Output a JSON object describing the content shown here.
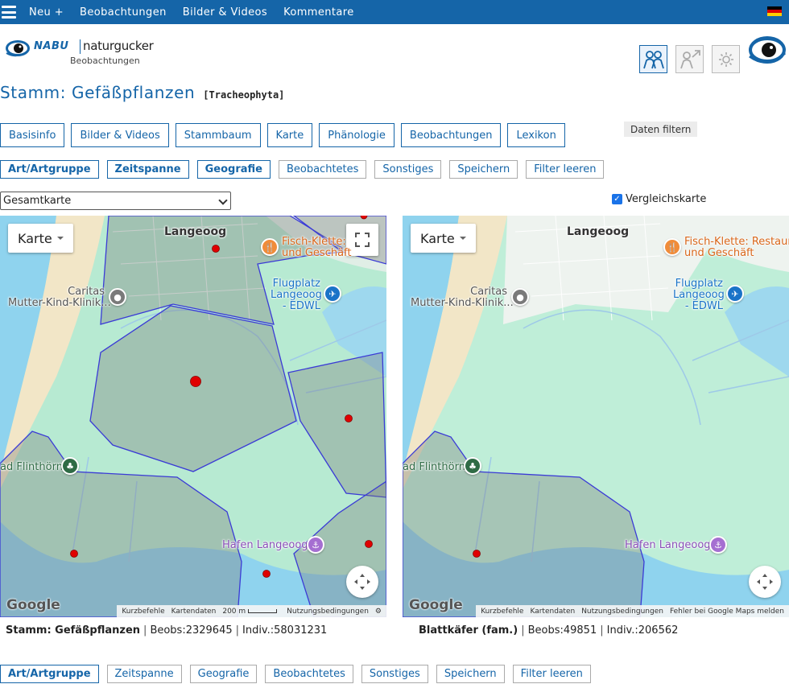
{
  "topbar": {
    "nav": [
      "Neu +",
      "Beobachtungen",
      "Bilder & Videos",
      "Kommentare"
    ],
    "flag_colors": [
      "#000000",
      "#dd0000",
      "#ffce00"
    ]
  },
  "logo": {
    "brand": "NABU",
    "name": "naturgucker",
    "sub": "Beobachtungen"
  },
  "toolbar_icons": [
    "people-icon",
    "person-arrow-icon",
    "settings-icon"
  ],
  "title": {
    "main": "Stamm: Gefäßpflanzen",
    "scientific": "[Tracheophyta]"
  },
  "tabs": [
    "Basisinfo",
    "Bilder & Videos",
    "Stammbaum",
    "Karte",
    "Phänologie",
    "Beobachtungen",
    "Lexikon"
  ],
  "filter_button": "Daten filtern",
  "subtabs": [
    {
      "label": "Art/Artgruppe",
      "bold": true
    },
    {
      "label": "Zeitspanne",
      "bold": true
    },
    {
      "label": "Geografie",
      "bold": true
    },
    {
      "label": "Beobachtetes",
      "bold": false
    },
    {
      "label": "Sonstiges",
      "bold": false
    },
    {
      "label": "Speichern",
      "bold": false
    },
    {
      "label": "Filter leeren",
      "bold": false
    }
  ],
  "subtabs_bottom": [
    {
      "label": "Art/Artgruppe",
      "bold": true
    },
    {
      "label": "Zeitspanne",
      "bold": false
    },
    {
      "label": "Geografie",
      "bold": false
    },
    {
      "label": "Beobachtetes",
      "bold": false
    },
    {
      "label": "Sonstiges",
      "bold": false
    },
    {
      "label": "Speichern",
      "bold": false
    },
    {
      "label": "Filter leeren",
      "bold": false
    }
  ],
  "map_select": {
    "value": "Gesamtkarte"
  },
  "compare": {
    "label": "Vergleichskarte",
    "checked": true
  },
  "map_common": {
    "type_button": "Karte",
    "google": "Google",
    "places": {
      "town": "Langeoog",
      "restaurant_line1": "Fisch-Klette: Restaurant",
      "restaurant_line2": "und Geschäft",
      "restaurant_left_line1": "Fisch-Klette:",
      "restaurant_left_line2": "und Geschäft",
      "caritas_line1": "Caritas",
      "caritas_line2": "Mutter-Kind-Klinik...",
      "airport_line1": "Flugplatz",
      "airport_line2": "Langeoog",
      "airport_line3": "- EDWL",
      "flinthorn": "ad Flinthörn",
      "harbor": "Hafen Langeoog"
    }
  },
  "map_left": {
    "attribution": [
      "Kurzbefehle",
      "Kartendaten",
      "200 m",
      "Nutzungsbedingungen"
    ],
    "stats": {
      "name": "Stamm: Gefäßpflanzen",
      "beobs": "Beobs:2329645",
      "indiv": "Indiv.:58031231"
    }
  },
  "map_right": {
    "attribution": [
      "Kurzbefehle",
      "Kartendaten",
      "Nutzungsbedingungen",
      "Fehler bei Google Maps melden"
    ],
    "stats": {
      "name": "Blattkäfer (fam.)",
      "beobs": "Beobs:49851",
      "indiv": "Indiv.:206562"
    }
  },
  "colors": {
    "primary": "#1565a8",
    "polygon_stroke": "#3a3ad6",
    "marker": "#e00000"
  }
}
